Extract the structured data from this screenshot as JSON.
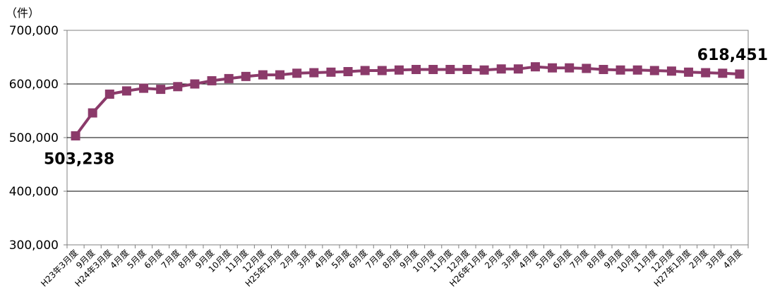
{
  "chart_data": {
    "type": "line",
    "title": "",
    "xlabel": "",
    "ylabel": "",
    "y_unit": "（件）",
    "ylim": [
      300000,
      700000
    ],
    "yticks": [
      300000,
      400000,
      500000,
      600000,
      700000
    ],
    "ytick_labels": [
      "300,000",
      "400,000",
      "500,000",
      "600,000",
      "700,000"
    ],
    "grid": true,
    "legend": "none",
    "series_color": "#8b3a6a",
    "categories": [
      "H23年3月度",
      "9月度",
      "H24年3月度",
      "4月度",
      "5月度",
      "6月度",
      "7月度",
      "8月度",
      "9月度",
      "10月度",
      "11月度",
      "12月度",
      "H25年1月度",
      "2月度",
      "3月度",
      "4月度",
      "5月度",
      "6月度",
      "7月度",
      "8月度",
      "9月度",
      "10月度",
      "11月度",
      "12月度",
      "H26年1月度",
      "2月度",
      "3月度",
      "4月度",
      "5月度",
      "6月度",
      "7月度",
      "8月度",
      "9月度",
      "10月度",
      "11月度",
      "12月度",
      "H27年1月度",
      "2月度",
      "3月度",
      "4月度"
    ],
    "series": [
      {
        "values": [
          503238,
          546000,
          581000,
          587000,
          592000,
          590000,
          595000,
          600000,
          606000,
          610000,
          614000,
          617000,
          617000,
          620000,
          621000,
          622000,
          623000,
          625000,
          625000,
          626000,
          627000,
          627000,
          627000,
          627000,
          626000,
          628000,
          628000,
          632000,
          630000,
          630000,
          629000,
          627000,
          626000,
          626000,
          625000,
          624000,
          622000,
          621000,
          620000,
          618451
        ]
      }
    ],
    "annotations": [
      {
        "index": 0,
        "text": "503,238"
      },
      {
        "index": 39,
        "text": "618,451"
      }
    ]
  }
}
